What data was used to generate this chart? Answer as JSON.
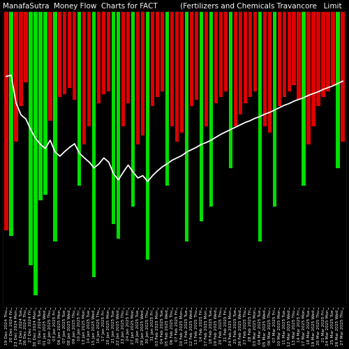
{
  "title": "ManafaSutra  Money Flow  Charts for FACT          (Fertilizers and Chemicals Travancore   Limit",
  "background_color": "#000000",
  "bar_colors": [
    "red",
    "green",
    "red",
    "red",
    "red",
    "green",
    "green",
    "green",
    "green",
    "red",
    "green",
    "red",
    "red",
    "red",
    "red",
    "green",
    "red",
    "red",
    "green",
    "red",
    "red",
    "red",
    "green",
    "green",
    "red",
    "red",
    "green",
    "red",
    "red",
    "green",
    "red",
    "red",
    "red",
    "green",
    "red",
    "red",
    "red",
    "green",
    "red",
    "red",
    "green",
    "red",
    "green",
    "red",
    "red",
    "red",
    "green",
    "red",
    "red",
    "red",
    "red",
    "red",
    "green",
    "red",
    "red",
    "green",
    "red",
    "red",
    "red",
    "red",
    "red",
    "green",
    "red",
    "red",
    "red",
    "red",
    "red",
    "red",
    "green",
    "red"
  ],
  "bar_heights": [
    370,
    380,
    220,
    160,
    120,
    430,
    480,
    320,
    310,
    185,
    390,
    145,
    140,
    130,
    150,
    295,
    225,
    195,
    450,
    155,
    140,
    135,
    360,
    385,
    195,
    155,
    330,
    225,
    210,
    420,
    160,
    145,
    135,
    295,
    195,
    220,
    205,
    390,
    160,
    150,
    355,
    195,
    330,
    155,
    145,
    135,
    265,
    195,
    175,
    155,
    145,
    135,
    390,
    195,
    205,
    330,
    160,
    145,
    135,
    125,
    150,
    295,
    225,
    195,
    160,
    145,
    135,
    125,
    265,
    220
  ],
  "line_color": "#ffffff",
  "line_y": [
    110,
    108,
    155,
    175,
    182,
    200,
    215,
    225,
    232,
    218,
    238,
    245,
    237,
    230,
    224,
    240,
    248,
    255,
    265,
    258,
    248,
    255,
    275,
    285,
    272,
    260,
    272,
    282,
    278,
    288,
    278,
    270,
    263,
    258,
    252,
    248,
    244,
    238,
    234,
    230,
    225,
    222,
    218,
    213,
    208,
    204,
    200,
    196,
    192,
    188,
    185,
    181,
    178,
    174,
    171,
    167,
    163,
    159,
    156,
    152,
    149,
    146,
    142,
    139,
    136,
    132,
    129,
    126,
    122,
    118
  ],
  "xlabel": "",
  "ylabel": "",
  "title_fontsize": 7.5,
  "tick_fontsize": 4.2,
  "x_labels": [
    "19 Dec 2024 Thu",
    "20 Dec 2024 Fri",
    "23 Dec 2024 Mon",
    "24 Dec 2024 Tue",
    "26 Dec 2024 Thu",
    "27 Dec 2024 Fri",
    "30 Dec 2024 Mon",
    "31 Dec 2024 Tue",
    "01 Jan 2025 Wed",
    "02 Jan 2025 Thu",
    "03 Jan 2025 Fri",
    "06 Jan 2025 Mon",
    "07 Jan 2025 Tue",
    "08 Jan 2025 Wed",
    "09 Jan 2025 Thu",
    "10 Jan 2025 Fri",
    "13 Jan 2025 Mon",
    "14 Jan 2025 Tue",
    "15 Jan 2025 Wed",
    "16 Jan 2025 Thu",
    "17 Jan 2025 Fri",
    "20 Jan 2025 Mon",
    "21 Jan 2025 Tue",
    "22 Jan 2025 Wed",
    "23 Jan 2025 Thu",
    "24 Jan 2025 Fri",
    "27 Jan 2025 Mon",
    "28 Jan 2025 Tue",
    "29 Jan 2025 Wed",
    "30 Jan 2025 Thu",
    "31 Jan 2025 Fri",
    "03 Feb 2025 Mon",
    "04 Feb 2025 Tue",
    "05 Feb 2025 Wed",
    "06 Feb 2025 Thu",
    "07 Feb 2025 Fri",
    "10 Feb 2025 Mon",
    "11 Feb 2025 Tue",
    "12 Feb 2025 Wed",
    "13 Feb 2025 Thu",
    "14 Feb 2025 Fri",
    "17 Feb 2025 Mon",
    "18 Feb 2025 Tue",
    "19 Feb 2025 Wed",
    "20 Feb 2025 Thu",
    "21 Feb 2025 Fri",
    "24 Feb 2025 Mon",
    "25 Feb 2025 Tue",
    "26 Feb 2025 Wed",
    "27 Feb 2025 Thu",
    "28 Feb 2025 Fri",
    "03 Mar 2025 Mon",
    "04 Mar 2025 Tue",
    "05 Mar 2025 Wed",
    "06 Mar 2025 Thu",
    "07 Mar 2025 Fri",
    "10 Mar 2025 Mon",
    "11 Mar 2025 Tue",
    "12 Mar 2025 Wed",
    "13 Mar 2025 Thu",
    "14 Mar 2025 Fri",
    "17 Mar 2025 Mon",
    "18 Mar 2025 Tue",
    "19 Mar 2025 Wed",
    "20 Mar 2025 Thu",
    "21 Mar 2025 Fri",
    "24 Mar 2025 Mon",
    "25 Mar 2025 Tue",
    "26 Mar 2025 Wed",
    "27 Mar 2025 Thu"
  ]
}
